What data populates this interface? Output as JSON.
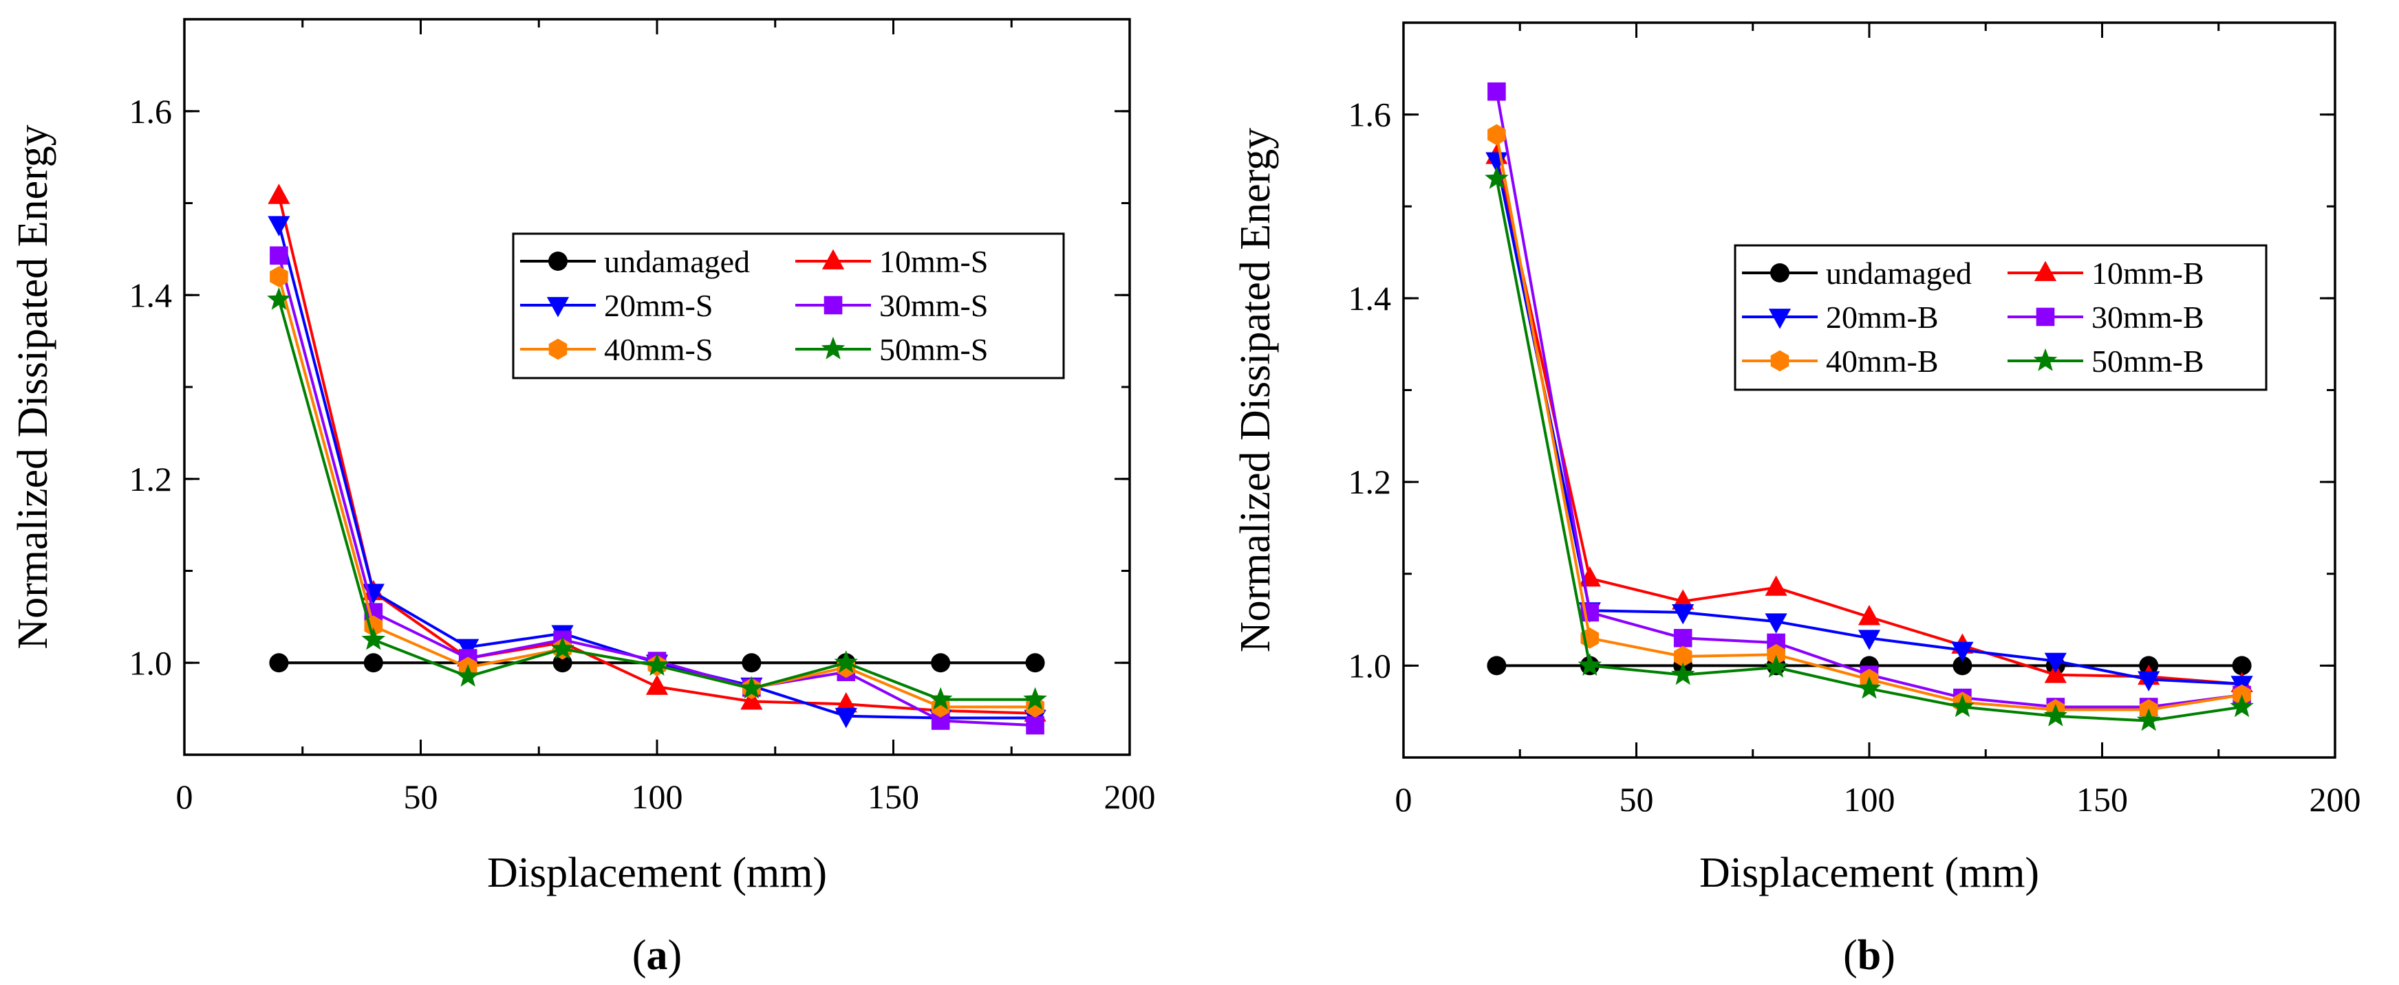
{
  "chart_data": [
    {
      "type": "line",
      "panel_label": "a",
      "title": "",
      "xlabel": "Displacement (mm)",
      "ylabel": "Normalized Dissipated Energy",
      "xlim": [
        0,
        200
      ],
      "ylim": [
        0.9,
        1.7
      ],
      "xticks": [
        "0",
        "50",
        "100",
        "150",
        "200"
      ],
      "yticks": [
        "1.0",
        "1.2",
        "1.4",
        "1.6"
      ],
      "grid": false,
      "legend_position": "center-right",
      "x": [
        20,
        40,
        60,
        80,
        100,
        120,
        140,
        160,
        180
      ],
      "series": [
        {
          "name": "undamaged",
          "color": "#000000",
          "marker": "circle",
          "values": [
            1.0,
            1.0,
            1.0,
            1.0,
            1.0,
            1.0,
            1.0,
            1.0,
            1.0
          ]
        },
        {
          "name": "10mm-S",
          "color": "#ff0000",
          "marker": "triangle-up",
          "values": [
            1.508,
            1.077,
            1.005,
            1.022,
            0.974,
            0.958,
            0.955,
            0.948,
            0.945
          ]
        },
        {
          "name": "20mm-S",
          "color": "#0000ff",
          "marker": "triangle-down",
          "values": [
            1.477,
            1.077,
            1.017,
            1.032,
            1.0,
            0.975,
            0.942,
            0.94,
            0.94
          ]
        },
        {
          "name": "30mm-S",
          "color": "#8b00ff",
          "marker": "square",
          "values": [
            1.443,
            1.055,
            1.005,
            1.025,
            1.002,
            0.973,
            0.99,
            0.937,
            0.932
          ]
        },
        {
          "name": "40mm-S",
          "color": "#ff8000",
          "marker": "hexagon",
          "values": [
            1.42,
            1.04,
            0.995,
            1.015,
            0.997,
            0.972,
            0.995,
            0.952,
            0.952
          ]
        },
        {
          "name": "50mm-S",
          "color": "#008000",
          "marker": "star",
          "values": [
            1.395,
            1.025,
            0.985,
            1.015,
            0.997,
            0.972,
            1.0,
            0.96,
            0.96
          ]
        }
      ]
    },
    {
      "type": "line",
      "panel_label": "b",
      "title": "",
      "xlabel": "Displacement (mm)",
      "ylabel": "Normalized Dissipated Energy",
      "xlim": [
        0,
        200
      ],
      "ylim": [
        0.9,
        1.7
      ],
      "xticks": [
        "0",
        "50",
        "100",
        "150",
        "200"
      ],
      "yticks": [
        "1.0",
        "1.2",
        "1.4",
        "1.6"
      ],
      "grid": false,
      "legend_position": "center-right",
      "x": [
        20,
        40,
        60,
        80,
        100,
        120,
        140,
        160,
        180
      ],
      "series": [
        {
          "name": "undamaged",
          "color": "#000000",
          "marker": "circle",
          "values": [
            1.0,
            1.0,
            1.0,
            1.0,
            1.0,
            1.0,
            1.0,
            1.0,
            1.0
          ]
        },
        {
          "name": "10mm-B",
          "color": "#ff0000",
          "marker": "triangle-up",
          "values": [
            1.555,
            1.095,
            1.07,
            1.085,
            1.053,
            1.022,
            0.99,
            0.988,
            0.98
          ]
        },
        {
          "name": "20mm-B",
          "color": "#0000ff",
          "marker": "triangle-down",
          "values": [
            1.55,
            1.06,
            1.058,
            1.048,
            1.03,
            1.017,
            1.005,
            0.985,
            0.98
          ]
        },
        {
          "name": "30mm-B",
          "color": "#8b00ff",
          "marker": "square",
          "values": [
            1.625,
            1.058,
            1.03,
            1.025,
            0.99,
            0.965,
            0.955,
            0.955,
            0.968
          ]
        },
        {
          "name": "40mm-B",
          "color": "#ff8000",
          "marker": "hexagon",
          "values": [
            1.578,
            1.03,
            1.01,
            1.012,
            0.985,
            0.96,
            0.952,
            0.952,
            0.968
          ]
        },
        {
          "name": "50mm-B",
          "color": "#008000",
          "marker": "star",
          "values": [
            1.53,
            1.0,
            0.99,
            0.998,
            0.975,
            0.955,
            0.945,
            0.94,
            0.955
          ]
        }
      ]
    }
  ]
}
